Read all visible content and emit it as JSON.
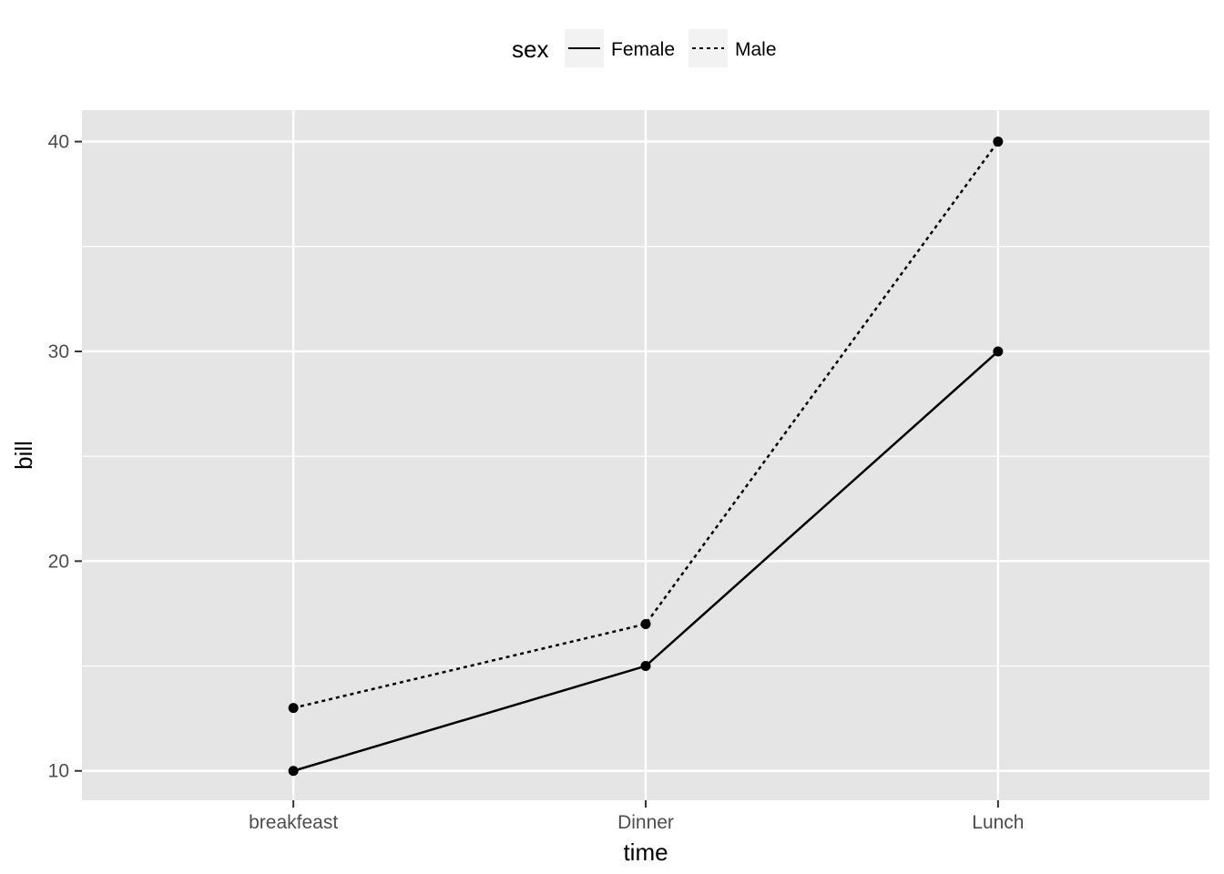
{
  "chart_data": {
    "type": "line",
    "xlabel": "time",
    "ylabel": "bill",
    "categories": [
      "breakfeast",
      "Dinner",
      "Lunch"
    ],
    "ylim": [
      8.6,
      41.5
    ],
    "yticks": [
      10,
      20,
      30,
      40
    ],
    "grid": true,
    "legend": {
      "title": "sex",
      "position": "top"
    },
    "series": [
      {
        "name": "Female",
        "values": [
          10,
          15,
          30
        ],
        "linetype": "solid"
      },
      {
        "name": "Male",
        "values": [
          13,
          17,
          40
        ],
        "linetype": "dotted"
      }
    ],
    "colors": {
      "panel": "#e5e5e5",
      "grid": "#ffffff",
      "line": "#000000",
      "legend_key": "#f2f2f2"
    }
  }
}
